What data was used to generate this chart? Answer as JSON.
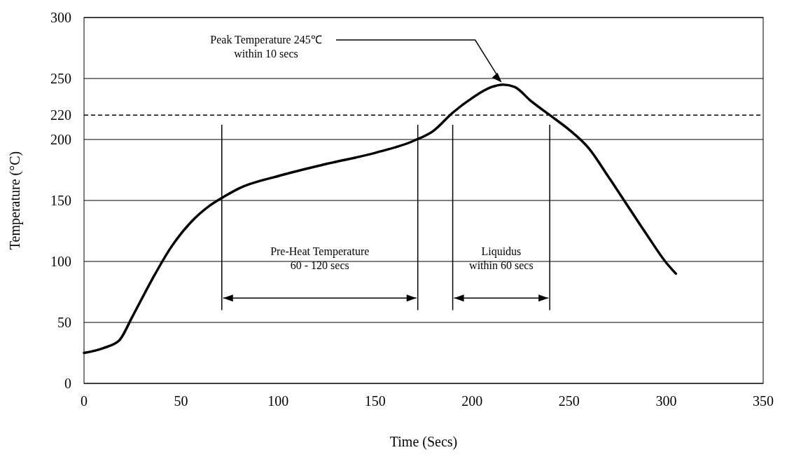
{
  "chart_data": {
    "type": "line",
    "xlabel": "Time (Secs)",
    "ylabel": "Temperature (°C)",
    "xlim": [
      0,
      350
    ],
    "xticks": [
      0,
      50,
      100,
      150,
      200,
      250,
      300,
      350
    ],
    "ylim": [
      0,
      300
    ],
    "yticks": [
      0,
      50,
      100,
      150,
      200,
      220,
      250,
      300
    ],
    "grid": "y",
    "line_style": "solid",
    "series": [
      {
        "color": "#000000",
        "x": [
          0,
          10,
          18,
          25,
          35,
          45,
          55,
          65,
          72,
          80,
          100,
          125,
          150,
          170,
          180,
          190,
          200,
          210,
          216,
          222,
          230,
          240,
          250,
          260,
          270,
          280,
          290,
          300,
          305
        ],
        "values": [
          25,
          29,
          35,
          55,
          85,
          112,
          132,
          146,
          153,
          160,
          170,
          180,
          189,
          199,
          207,
          222,
          234,
          243,
          245,
          243,
          232,
          220,
          208,
          193,
          170,
          146,
          122,
          99,
          90
        ]
      }
    ],
    "ref_lines": [
      {
        "axis": "y",
        "value": 220,
        "line_style": "dashed",
        "color": "#000000"
      },
      {
        "axis": "x",
        "value": 71,
        "color": "#000000"
      },
      {
        "axis": "x",
        "value": 172,
        "color": "#000000"
      },
      {
        "axis": "x",
        "value": 190,
        "color": "#000000"
      },
      {
        "axis": "x",
        "value": 240,
        "color": "#000000"
      }
    ],
    "annotations": [
      {
        "text": "Peak Temperature 245℃\nwithin 10 secs",
        "x": 216,
        "y": 245
      },
      "Pre-Heat Temperature\n60 - 120 secs",
      "Liquidus\nwithin 60 secs"
    ]
  }
}
